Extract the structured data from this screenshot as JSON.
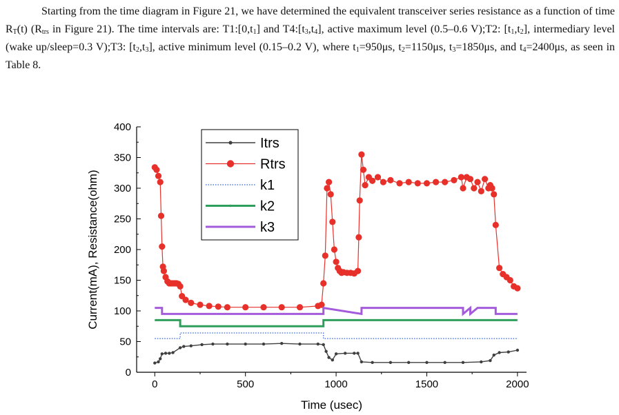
{
  "paragraph": {
    "s1": "Starting from the time diagram in Figure 21, we have determined the equivalent transceiver series resistance as a function of time R",
    "s1_sub": "T",
    "s2": "(t) (R",
    "s2_sub": "trs",
    "s3": " in Figure 21). The time intervals are: T1:[0,t",
    "s3_sub": "1",
    "s4": "] and T4:[t",
    "s4_sub": "3",
    "s5": ",t",
    "s5_sub": "4",
    "s6": "], active maximum level (0.5–0.6 V);T2: [t",
    "s6_sub": "1",
    "s7": ",t",
    "s7_sub": "2",
    "s8": "], intermediary level (wake up/sleep=0.3 V);T3: [t",
    "s8_sub": "2",
    "s9": ",t",
    "s9_sub": "3",
    "s10": "], active minimum level (0.15–0.2 V), where t",
    "s10_sub": "1",
    "s11": "=950μs, t",
    "s11_sub": "2",
    "s12": "=1150μs, t",
    "s12_sub": "3",
    "s13": "=1850μs, and t",
    "s13_sub": "4",
    "s14": "=2400μs, as seen in Table 8."
  },
  "colors": {
    "itrs": "#3f3f3f",
    "rtrs": "#e8302a",
    "k1": "#2a5fd8",
    "k2": "#2e9e5b",
    "k3": "#a35bdc"
  },
  "chart_data": {
    "type": "line",
    "title": "",
    "xlabel": "Time (usec)",
    "ylabel": "Current(mA), Resistance(ohm)",
    "xlim": [
      -100,
      2050
    ],
    "ylim": [
      0,
      400
    ],
    "xticks": [
      0,
      500,
      1000,
      1500,
      2000
    ],
    "yticks": [
      0,
      50,
      100,
      150,
      200,
      250,
      300,
      350,
      400
    ],
    "legend_position": "top-left",
    "series": [
      {
        "name": "Itrs",
        "style": "line-small-markers",
        "x": [
          0,
          20,
          30,
          40,
          60,
          80,
          100,
          140,
          160,
          200,
          260,
          320,
          400,
          500,
          600,
          700,
          800,
          900,
          930,
          945,
          960,
          980,
          1000,
          1050,
          1100,
          1120,
          1140,
          1200,
          1300,
          1400,
          1500,
          1600,
          1700,
          1800,
          1850,
          1870,
          1900,
          1950,
          2000
        ],
        "y": [
          15,
          17,
          22,
          30,
          31,
          31,
          32,
          40,
          42,
          43,
          45,
          46,
          46,
          46,
          46,
          47,
          46,
          46,
          45,
          34,
          24,
          20,
          30,
          31,
          31,
          31,
          17,
          16,
          16,
          16,
          16,
          16,
          16,
          17,
          19,
          28,
          32,
          33,
          36
        ]
      },
      {
        "name": "Rtrs",
        "style": "line-large-markers",
        "x": [
          0,
          10,
          20,
          30,
          35,
          40,
          45,
          50,
          60,
          70,
          80,
          90,
          100,
          110,
          120,
          130,
          140,
          150,
          170,
          200,
          250,
          300,
          350,
          400,
          500,
          600,
          700,
          800,
          900,
          920,
          930,
          940,
          950,
          960,
          970,
          980,
          990,
          1000,
          1010,
          1020,
          1030,
          1040,
          1060,
          1080,
          1100,
          1120,
          1125,
          1130,
          1140,
          1150,
          1160,
          1180,
          1200,
          1230,
          1260,
          1300,
          1350,
          1400,
          1450,
          1500,
          1550,
          1600,
          1650,
          1690,
          1700,
          1720,
          1740,
          1760,
          1780,
          1800,
          1820,
          1840,
          1850,
          1860,
          1870,
          1880,
          1900,
          1920,
          1940,
          1960,
          1980,
          2000
        ],
        "y": [
          334,
          330,
          320,
          310,
          255,
          205,
          172,
          165,
          155,
          148,
          145,
          145,
          145,
          145,
          145,
          144,
          140,
          124,
          118,
          113,
          110,
          108,
          107,
          106,
          106,
          106,
          106,
          106,
          108,
          110,
          145,
          190,
          300,
          310,
          290,
          245,
          200,
          180,
          170,
          165,
          162,
          163,
          162,
          162,
          161,
          165,
          220,
          280,
          355,
          330,
          305,
          318,
          312,
          318,
          310,
          313,
          308,
          310,
          308,
          308,
          310,
          310,
          313,
          318,
          300,
          318,
          315,
          300,
          310,
          295,
          315,
          300,
          305,
          300,
          290,
          240,
          170,
          160,
          155,
          150,
          140,
          137
        ]
      },
      {
        "name": "k1",
        "style": "dotted",
        "x": [
          0,
          140,
          140,
          930,
          930,
          2000
        ],
        "y": [
          55,
          55,
          64,
          64,
          55,
          55
        ]
      },
      {
        "name": "k2",
        "style": "solid-thick",
        "x": [
          0,
          140,
          140,
          930,
          930,
          2000
        ],
        "y": [
          85,
          85,
          75,
          75,
          85,
          85
        ]
      },
      {
        "name": "k3",
        "style": "thick",
        "x": [
          0,
          40,
          40,
          930,
          930,
          1140,
          1140,
          1700,
          1700,
          1740,
          1740,
          1780,
          1780,
          1880,
          1880,
          2000
        ],
        "y": [
          105,
          105,
          95,
          95,
          105,
          95,
          105,
          105,
          95,
          105,
          95,
          105,
          105,
          105,
          95,
          95
        ]
      }
    ]
  }
}
